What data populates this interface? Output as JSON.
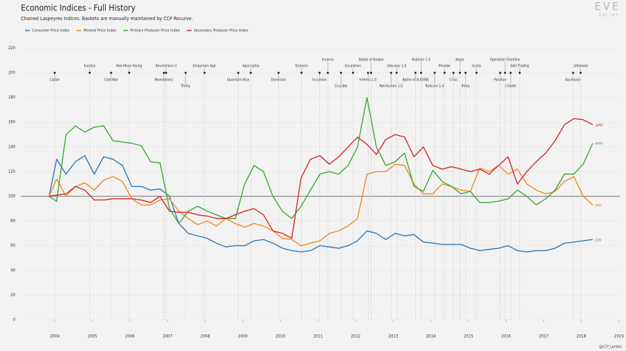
{
  "chart_data": {
    "type": "line",
    "title": "Economic Indices - Full History",
    "subtitle": "Chained Laspeyres Indices. Baskets are manually maintained by CCP Recurve.",
    "logo": "EVE",
    "logo_sub": "ONLINE",
    "credit": "@CCP_Larrikin",
    "x": [
      2003.85,
      2004.05,
      2004.3,
      2004.55,
      2004.8,
      2005.05,
      2005.3,
      2005.55,
      2005.8,
      2006.05,
      2006.3,
      2006.55,
      2006.8,
      2007.05,
      2007.3,
      2007.55,
      2007.8,
      2008.05,
      2008.3,
      2008.55,
      2008.8,
      2009.05,
      2009.3,
      2009.55,
      2009.8,
      2010.05,
      2010.3,
      2010.55,
      2010.8,
      2011.05,
      2011.3,
      2011.55,
      2011.8,
      2012.05,
      2012.3,
      2012.55,
      2012.8,
      2013.05,
      2013.3,
      2013.55,
      2013.8,
      2014.05,
      2014.3,
      2014.55,
      2014.8,
      2015.05,
      2015.3,
      2015.55,
      2015.8,
      2016.05,
      2016.3,
      2016.55,
      2016.8,
      2017.05,
      2017.3,
      2017.55,
      2017.8,
      2018.05,
      2018.3
    ],
    "series": [
      {
        "name": "Consumer Price Index",
        "end_label": "CPI",
        "color": "#2a7ab8",
        "values": [
          100,
          130,
          118,
          128,
          133,
          118,
          132,
          130,
          125,
          108,
          108,
          105,
          106,
          100,
          78,
          70,
          68,
          66,
          62,
          59,
          60,
          60,
          64,
          65,
          62,
          58,
          56,
          55,
          56,
          60,
          59,
          58,
          60,
          64,
          72,
          70,
          65,
          70,
          68,
          69,
          63,
          62,
          61,
          61,
          61,
          58,
          56,
          57,
          58,
          60,
          56,
          55,
          56,
          56,
          58,
          62,
          63,
          64,
          65
        ]
      },
      {
        "name": "Mineral Price Index",
        "end_label": "MPI",
        "color": "#f28a1e",
        "values": [
          100,
          114,
          100,
          108,
          111,
          105,
          113,
          116,
          112,
          98,
          93,
          93,
          97,
          98,
          88,
          82,
          77,
          80,
          76,
          82,
          78,
          75,
          78,
          76,
          72,
          66,
          65,
          60,
          62,
          64,
          70,
          72,
          76,
          82,
          118,
          120,
          120,
          126,
          125,
          110,
          102,
          102,
          110,
          108,
          105,
          104,
          123,
          120,
          125,
          118,
          122,
          110,
          105,
          102,
          104,
          112,
          116,
          100,
          93
        ]
      },
      {
        "name": "Primary Producer Price Index",
        "end_label": "PPPI",
        "color": "#3aa935",
        "values": [
          100,
          96,
          150,
          157,
          152,
          156,
          157,
          145,
          144,
          143,
          141,
          128,
          127,
          90,
          78,
          88,
          92,
          88,
          85,
          82,
          82,
          110,
          125,
          120,
          100,
          88,
          82,
          92,
          105,
          118,
          120,
          118,
          125,
          140,
          180,
          140,
          125,
          128,
          135,
          108,
          104,
          121,
          112,
          108,
          102,
          104,
          95,
          95,
          96,
          98,
          105,
          100,
          93,
          98,
          105,
          118,
          118,
          126,
          143
        ]
      },
      {
        "name": "Secondary Producer Price Index",
        "end_label": "SPPI",
        "color": "#d62528",
        "values": [
          100,
          101,
          102,
          108,
          105,
          97,
          97,
          98,
          98,
          98,
          97,
          95,
          100,
          88,
          87,
          87,
          85,
          84,
          82,
          82,
          85,
          88,
          90,
          85,
          72,
          70,
          66,
          115,
          130,
          133,
          126,
          132,
          140,
          148,
          142,
          134,
          146,
          150,
          148,
          132,
          140,
          125,
          122,
          124,
          122,
          120,
          122,
          118,
          125,
          132,
          110,
          120,
          128,
          135,
          145,
          158,
          163,
          162,
          158
        ]
      }
    ],
    "reference_line": 100,
    "events": [
      {
        "x": 2004.0,
        "label": "Castor"
      },
      {
        "x": 2004.93,
        "label": "Exodus"
      },
      {
        "x": 2005.5,
        "label": "Cold War"
      },
      {
        "x": 2005.98,
        "label": "Red Moon Rising"
      },
      {
        "x": 2006.9,
        "label": "Revelations"
      },
      {
        "x": 2006.96,
        "label": "Revelations II"
      },
      {
        "x": 2007.48,
        "label": "Trinity"
      },
      {
        "x": 2007.98,
        "label": "Empyrean Age"
      },
      {
        "x": 2008.88,
        "label": "Quantum Rise"
      },
      {
        "x": 2009.21,
        "label": "Apocrypha"
      },
      {
        "x": 2009.95,
        "label": "Dominion"
      },
      {
        "x": 2010.56,
        "label": "Tyrannis"
      },
      {
        "x": 2011.04,
        "label": "Incursion"
      },
      {
        "x": 2011.26,
        "label": "Incarna"
      },
      {
        "x": 2011.61,
        "label": "Crucible"
      },
      {
        "x": 2011.93,
        "label": "Escalation"
      },
      {
        "x": 2012.33,
        "label": "Inferno 1.0"
      },
      {
        "x": 2012.41,
        "label": "Battle of Asakai"
      },
      {
        "x": 2012.94,
        "label": "Retribution 1.0"
      },
      {
        "x": 2013.09,
        "label": "Odyssey 1.0"
      },
      {
        "x": 2013.59,
        "label": "Battle of B-R5RB"
      },
      {
        "x": 2013.74,
        "label": "Rubicon 1.0"
      },
      {
        "x": 2014.1,
        "label": "Rubicon 1.4"
      },
      {
        "x": 2014.36,
        "label": "Phoebe"
      },
      {
        "x": 2014.6,
        "label": "Crius"
      },
      {
        "x": 2014.77,
        "label": "Aegis"
      },
      {
        "x": 2014.92,
        "label": "Rhea"
      },
      {
        "x": 2015.21,
        "label": "Scylla"
      },
      {
        "x": 2015.84,
        "label": "Parallax"
      },
      {
        "x": 2015.97,
        "label": "Operation Frontline"
      },
      {
        "x": 2016.12,
        "label": "Citadel"
      },
      {
        "x": 2016.36,
        "label": "Skill Trading"
      },
      {
        "x": 2017.78,
        "label": "Ascension"
      },
      {
        "x": 2017.98,
        "label": "Lifeblood"
      }
    ],
    "xlim": [
      2003.1,
      2019.02
    ],
    "xticks": [
      2004,
      2005,
      2006,
      2007,
      2008,
      2009,
      2010,
      2011,
      2012,
      2013,
      2014,
      2015,
      2016,
      2017,
      2018,
      2019
    ],
    "ylim": [
      0,
      220
    ],
    "yticks": [
      0,
      20,
      40,
      60,
      80,
      100,
      120,
      140,
      160,
      180,
      200,
      220
    ],
    "grid": true
  }
}
